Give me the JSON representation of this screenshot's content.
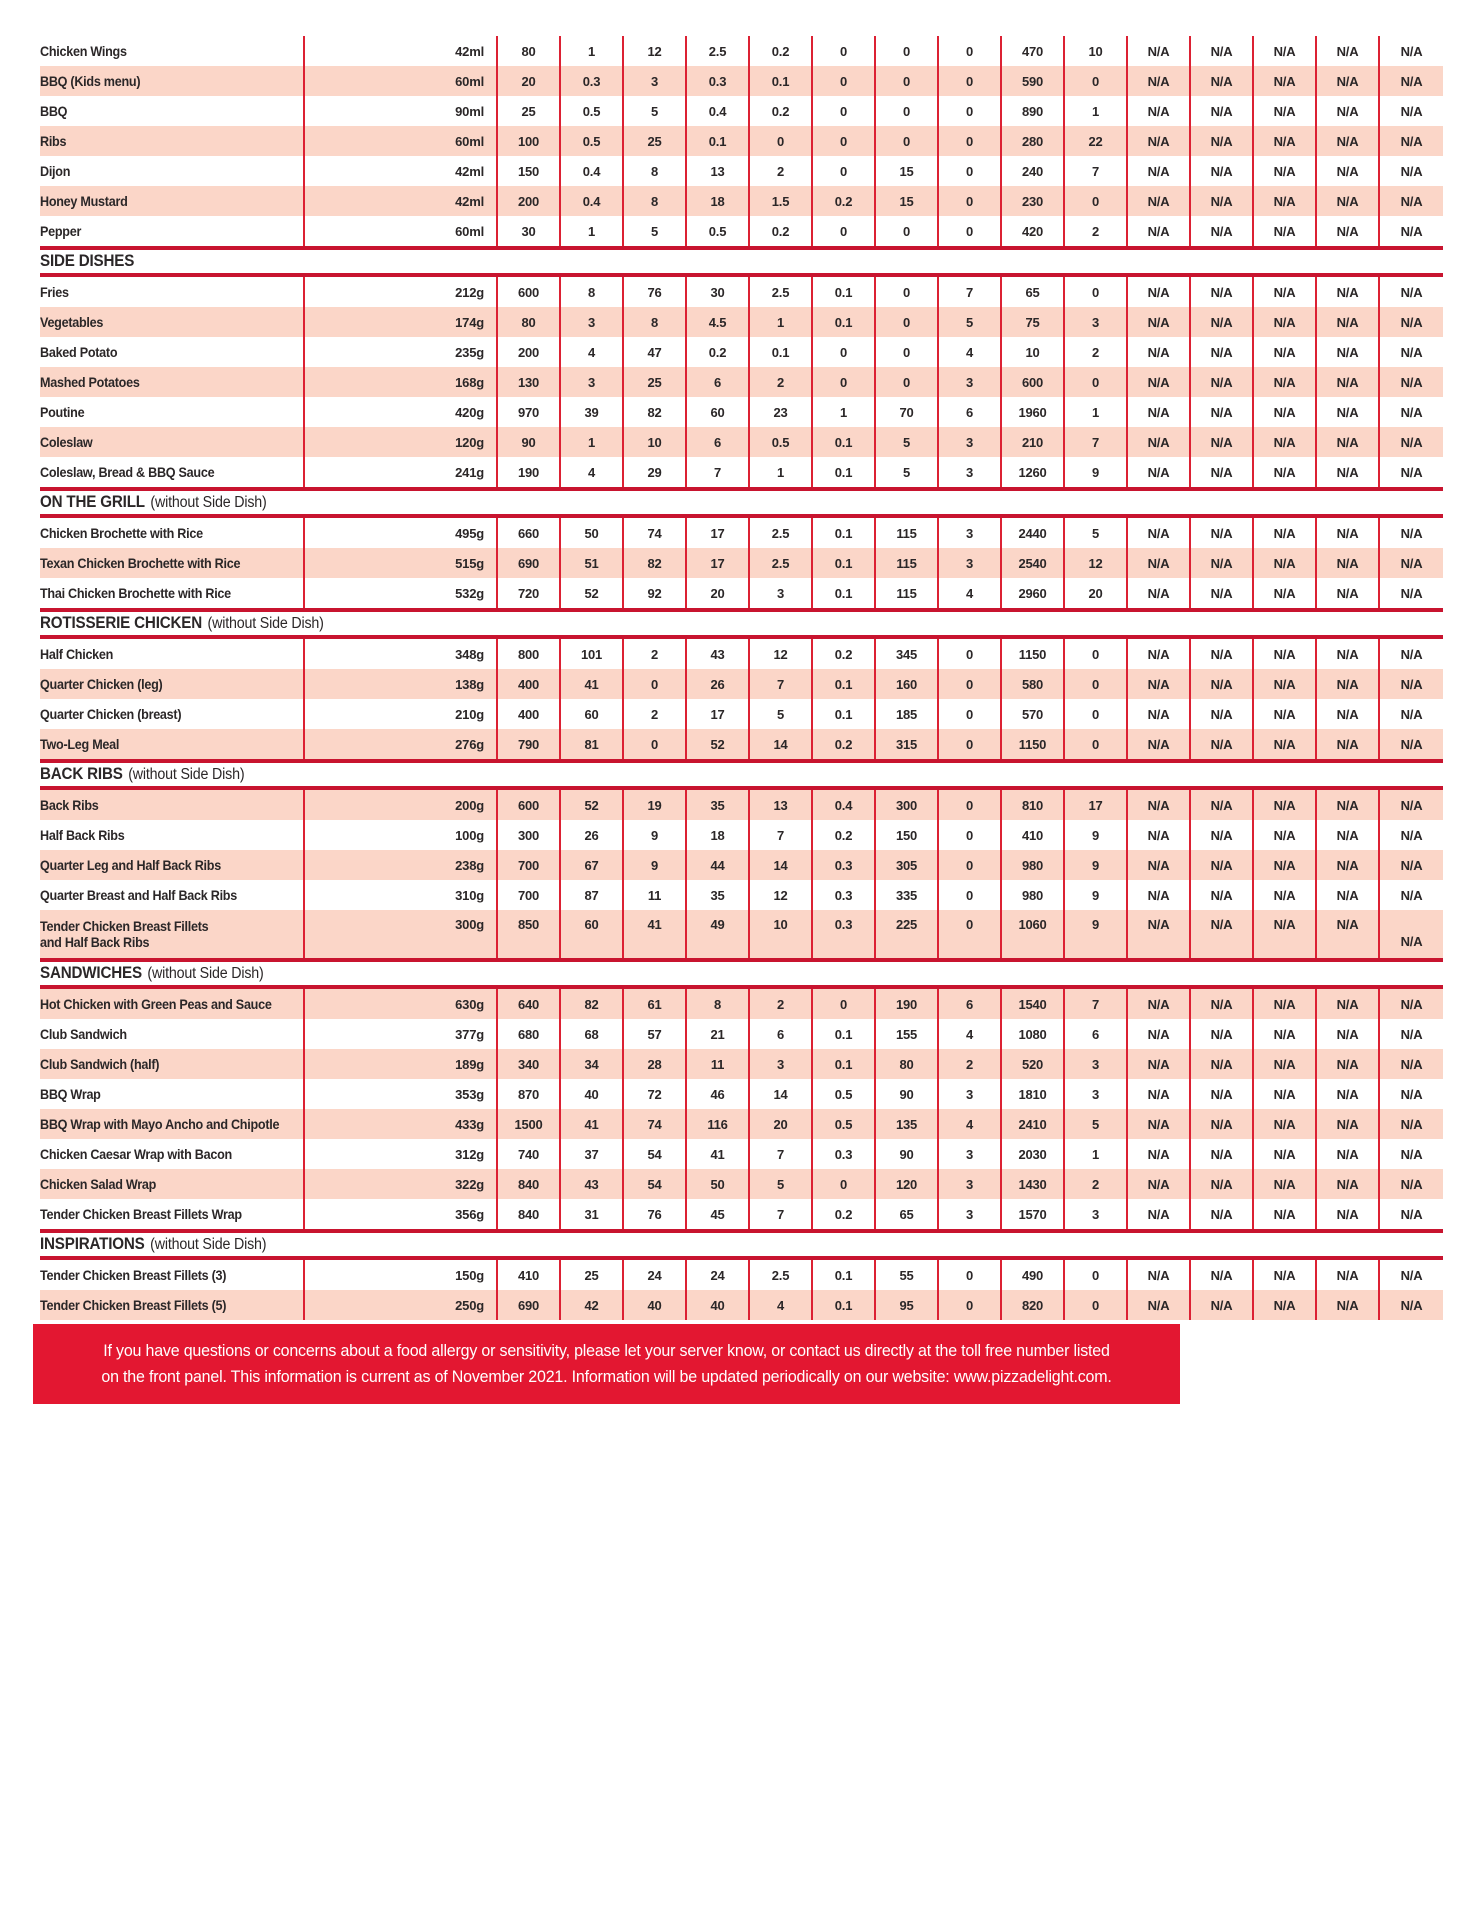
{
  "colors": {
    "pink_row": "#fbd6c8",
    "white_row": "#ffffff",
    "line_red": "#dc2133",
    "rule_red": "#c8142f",
    "banner_red": "#e31731",
    "text_dark": "#2b2728"
  },
  "table": {
    "na_label": "N/A",
    "na_count": 5,
    "sections": [
      {
        "header": null,
        "rows": [
          {
            "n": "Chicken Wings",
            "s": "42ml",
            "v": [
              "80",
              "1",
              "12",
              "2.5",
              "0.2",
              "0",
              "0",
              "0",
              "470",
              "10"
            ],
            "shade": "white"
          },
          {
            "n": "BBQ (Kids menu)",
            "s": "60ml",
            "v": [
              "20",
              "0.3",
              "3",
              "0.3",
              "0.1",
              "0",
              "0",
              "0",
              "590",
              "0"
            ],
            "shade": "pink"
          },
          {
            "n": "BBQ",
            "s": "90ml",
            "v": [
              "25",
              "0.5",
              "5",
              "0.4",
              "0.2",
              "0",
              "0",
              "0",
              "890",
              "1"
            ],
            "shade": "white"
          },
          {
            "n": "Ribs",
            "s": "60ml",
            "v": [
              "100",
              "0.5",
              "25",
              "0.1",
              "0",
              "0",
              "0",
              "0",
              "280",
              "22"
            ],
            "shade": "pink"
          },
          {
            "n": "Dijon",
            "s": "42ml",
            "v": [
              "150",
              "0.4",
              "8",
              "13",
              "2",
              "0",
              "15",
              "0",
              "240",
              "7"
            ],
            "shade": "white"
          },
          {
            "n": "Honey Mustard",
            "s": "42ml",
            "v": [
              "200",
              "0.4",
              "8",
              "18",
              "1.5",
              "0.2",
              "15",
              "0",
              "230",
              "0"
            ],
            "shade": "pink"
          },
          {
            "n": "Pepper",
            "s": "60ml",
            "v": [
              "30",
              "1",
              "5",
              "0.5",
              "0.2",
              "0",
              "0",
              "0",
              "420",
              "2"
            ],
            "shade": "white"
          }
        ]
      },
      {
        "header": {
          "title": "SIDE DISHES",
          "subtitle": ""
        },
        "rows": [
          {
            "n": "Fries",
            "s": "212g",
            "v": [
              "600",
              "8",
              "76",
              "30",
              "2.5",
              "0.1",
              "0",
              "7",
              "65",
              "0"
            ],
            "shade": "white"
          },
          {
            "n": "Vegetables",
            "s": "174g",
            "v": [
              "80",
              "3",
              "8",
              "4.5",
              "1",
              "0.1",
              "0",
              "5",
              "75",
              "3"
            ],
            "shade": "pink"
          },
          {
            "n": "Baked Potato",
            "s": "235g",
            "v": [
              "200",
              "4",
              "47",
              "0.2",
              "0.1",
              "0",
              "0",
              "4",
              "10",
              "2"
            ],
            "shade": "white"
          },
          {
            "n": "Mashed Potatoes",
            "s": "168g",
            "v": [
              "130",
              "3",
              "25",
              "6",
              "2",
              "0",
              "0",
              "3",
              "600",
              "0"
            ],
            "shade": "pink"
          },
          {
            "n": "Poutine",
            "s": "420g",
            "v": [
              "970",
              "39",
              "82",
              "60",
              "23",
              "1",
              "70",
              "6",
              "1960",
              "1"
            ],
            "shade": "white"
          },
          {
            "n": "Coleslaw",
            "s": "120g",
            "v": [
              "90",
              "1",
              "10",
              "6",
              "0.5",
              "0.1",
              "5",
              "3",
              "210",
              "7"
            ],
            "shade": "pink"
          },
          {
            "n": "Coleslaw, Bread & BBQ Sauce",
            "s": "241g",
            "v": [
              "190",
              "4",
              "29",
              "7",
              "1",
              "0.1",
              "5",
              "3",
              "1260",
              "9"
            ],
            "shade": "white"
          }
        ]
      },
      {
        "header": {
          "title": "ON THE GRILL",
          "subtitle": "(without Side Dish)"
        },
        "rows": [
          {
            "n": "Chicken Brochette with Rice",
            "s": "495g",
            "v": [
              "660",
              "50",
              "74",
              "17",
              "2.5",
              "0.1",
              "115",
              "3",
              "2440",
              "5"
            ],
            "shade": "white"
          },
          {
            "n": "Texan Chicken Brochette with Rice",
            "s": "515g",
            "v": [
              "690",
              "51",
              "82",
              "17",
              "2.5",
              "0.1",
              "115",
              "3",
              "2540",
              "12"
            ],
            "shade": "pink"
          },
          {
            "n": "Thai Chicken Brochette with Rice",
            "s": "532g",
            "v": [
              "720",
              "52",
              "92",
              "20",
              "3",
              "0.1",
              "115",
              "4",
              "2960",
              "20"
            ],
            "shade": "white"
          }
        ]
      },
      {
        "header": {
          "title": "ROTISSERIE CHICKEN",
          "subtitle": "(without Side Dish)"
        },
        "rows": [
          {
            "n": "Half Chicken",
            "s": "348g",
            "v": [
              "800",
              "101",
              "2",
              "43",
              "12",
              "0.2",
              "345",
              "0",
              "1150",
              "0"
            ],
            "shade": "white"
          },
          {
            "n": "Quarter Chicken (leg)",
            "s": "138g",
            "v": [
              "400",
              "41",
              "0",
              "26",
              "7",
              "0.1",
              "160",
              "0",
              "580",
              "0"
            ],
            "shade": "pink"
          },
          {
            "n": "Quarter Chicken (breast)",
            "s": "210g",
            "v": [
              "400",
              "60",
              "2",
              "17",
              "5",
              "0.1",
              "185",
              "0",
              "570",
              "0"
            ],
            "shade": "white"
          },
          {
            "n": "Two-Leg Meal",
            "s": "276g",
            "v": [
              "790",
              "81",
              "0",
              "52",
              "14",
              "0.2",
              "315",
              "0",
              "1150",
              "0"
            ],
            "shade": "pink"
          }
        ]
      },
      {
        "header": {
          "title": "BACK RIBS",
          "subtitle": "(without Side Dish)"
        },
        "rows": [
          {
            "n": "Back Ribs",
            "s": "200g",
            "v": [
              "600",
              "52",
              "19",
              "35",
              "13",
              "0.4",
              "300",
              "0",
              "810",
              "17"
            ],
            "shade": "pink"
          },
          {
            "n": "Half Back Ribs",
            "s": "100g",
            "v": [
              "300",
              "26",
              "9",
              "18",
              "7",
              "0.2",
              "150",
              "0",
              "410",
              "9"
            ],
            "shade": "white"
          },
          {
            "n": "Quarter Leg and Half Back Ribs",
            "s": "238g",
            "v": [
              "700",
              "67",
              "9",
              "44",
              "14",
              "0.3",
              "305",
              "0",
              "980",
              "9"
            ],
            "shade": "pink"
          },
          {
            "n": "Quarter Breast and Half Back Ribs",
            "s": "310g",
            "v": [
              "700",
              "87",
              "11",
              "35",
              "12",
              "0.3",
              "335",
              "0",
              "980",
              "9"
            ],
            "shade": "white"
          },
          {
            "n": "Tender Chicken Breast Fillets",
            "n2": "and Half Back Ribs",
            "s": "300g",
            "v": [
              "850",
              "60",
              "41",
              "49",
              "10",
              "0.3",
              "225",
              "0",
              "1060",
              "9"
            ],
            "shade": "pink",
            "tall": true
          }
        ]
      },
      {
        "header": {
          "title": "SANDWICHES",
          "subtitle": "(without Side Dish)"
        },
        "rows": [
          {
            "n": "Hot Chicken with Green Peas and Sauce",
            "s": "630g",
            "v": [
              "640",
              "82",
              "61",
              "8",
              "2",
              "0",
              "190",
              "6",
              "1540",
              "7"
            ],
            "shade": "pink"
          },
          {
            "n": "Club Sandwich",
            "s": "377g",
            "v": [
              "680",
              "68",
              "57",
              "21",
              "6",
              "0.1",
              "155",
              "4",
              "1080",
              "6"
            ],
            "shade": "white"
          },
          {
            "n": "Club Sandwich (half)",
            "s": "189g",
            "v": [
              "340",
              "34",
              "28",
              "11",
              "3",
              "0.1",
              "80",
              "2",
              "520",
              "3"
            ],
            "shade": "pink"
          },
          {
            "n": "BBQ Wrap",
            "s": "353g",
            "v": [
              "870",
              "40",
              "72",
              "46",
              "14",
              "0.5",
              "90",
              "3",
              "1810",
              "3"
            ],
            "shade": "white"
          },
          {
            "n": "BBQ Wrap with Mayo Ancho and Chipotle",
            "s": "433g",
            "v": [
              "1500",
              "41",
              "74",
              "116",
              "20",
              "0.5",
              "135",
              "4",
              "2410",
              "5"
            ],
            "shade": "pink"
          },
          {
            "n": "Chicken Caesar Wrap with Bacon",
            "s": "312g",
            "v": [
              "740",
              "37",
              "54",
              "41",
              "7",
              "0.3",
              "90",
              "3",
              "2030",
              "1"
            ],
            "shade": "white"
          },
          {
            "n": "Chicken Salad Wrap",
            "s": "322g",
            "v": [
              "840",
              "43",
              "54",
              "50",
              "5",
              "0",
              "120",
              "3",
              "1430",
              "2"
            ],
            "shade": "pink"
          },
          {
            "n": "Tender Chicken Breast Fillets Wrap",
            "s": "356g",
            "v": [
              "840",
              "31",
              "76",
              "45",
              "7",
              "0.2",
              "65",
              "3",
              "1570",
              "3"
            ],
            "shade": "white"
          }
        ]
      },
      {
        "header": {
          "title": "INSPIRATIONS",
          "subtitle": "(without Side Dish)"
        },
        "rows": [
          {
            "n": "Tender Chicken Breast Fillets (3)",
            "s": "150g",
            "v": [
              "410",
              "25",
              "24",
              "24",
              "2.5",
              "0.1",
              "55",
              "0",
              "490",
              "0"
            ],
            "shade": "white"
          },
          {
            "n": "Tender Chicken Breast Fillets (5)",
            "s": "250g",
            "v": [
              "690",
              "42",
              "40",
              "40",
              "4",
              "0.1",
              "95",
              "0",
              "820",
              "0"
            ],
            "shade": "pink"
          }
        ]
      }
    ]
  },
  "banner": {
    "line1": "If you have questions or concerns about a food allergy or sensitivity, please let your server know, or contact us directly at the toll free number listed",
    "line2": "on the front panel. This information is current as of November 2021. Information will be updated periodically on our website: www.pizzadelight.com."
  }
}
